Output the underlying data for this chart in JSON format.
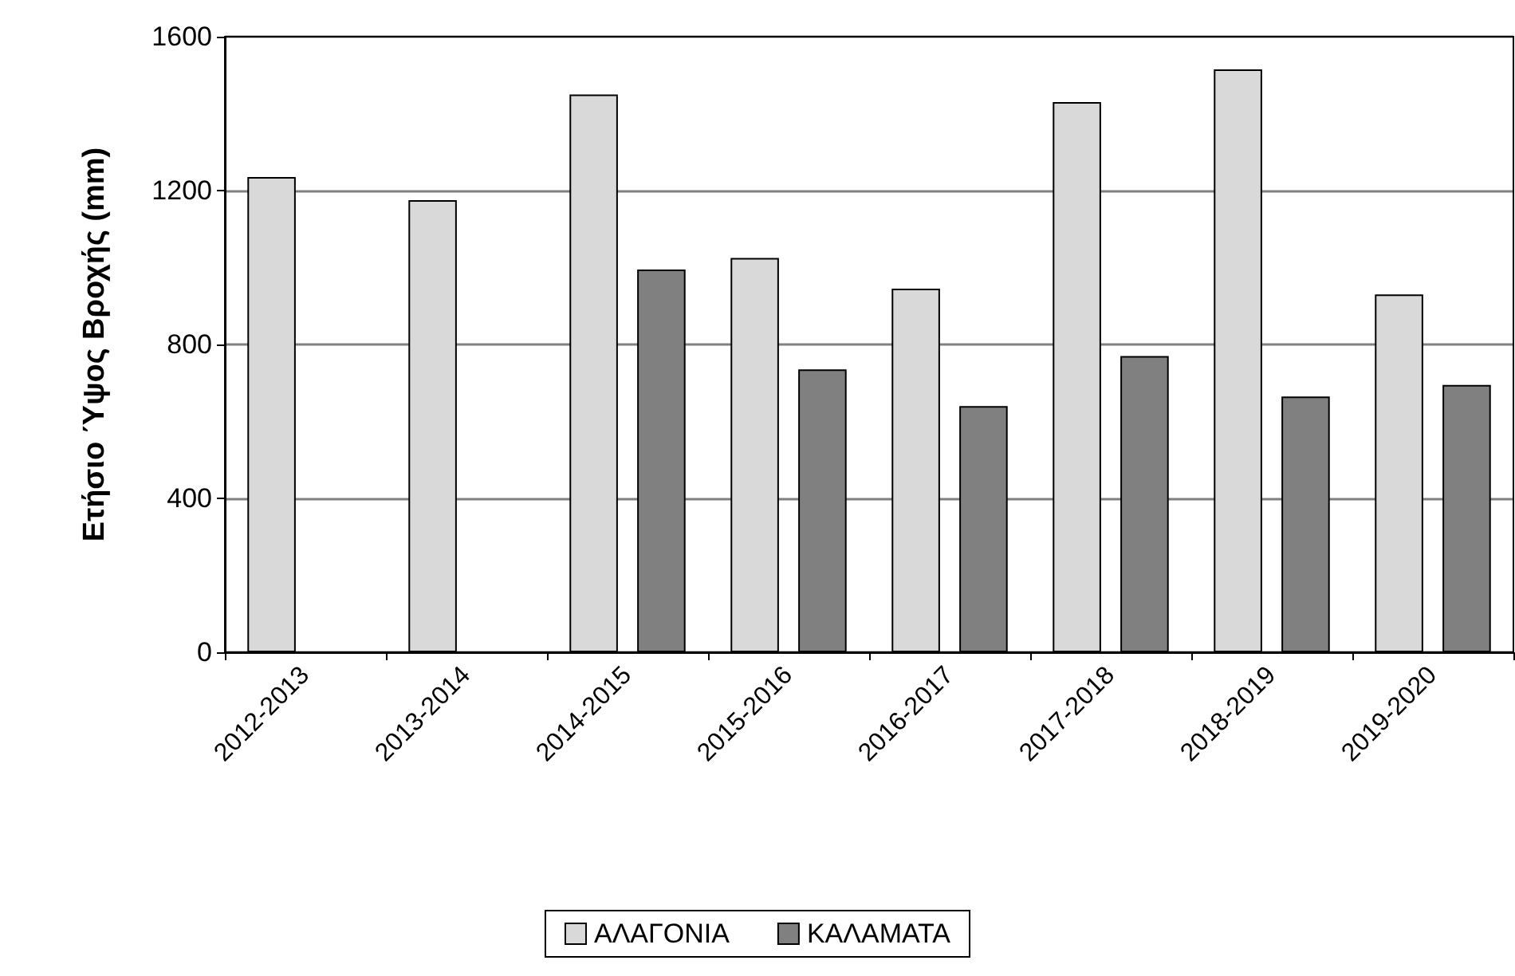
{
  "chart_data": {
    "type": "bar",
    "ylabel": "Ετήσιο Ύψος Βροχής (mm)",
    "categories": [
      "2012-2013",
      "2013-2014",
      "2014-2015",
      "2015-2016",
      "2016-2017",
      "2017-2018",
      "2018-2019",
      "2019-2020"
    ],
    "series": [
      {
        "name": "ΑΛΑΓΟΝΙΑ",
        "color": "#d9d9d9",
        "values": [
          1235,
          1175,
          1450,
          1025,
          945,
          1430,
          1515,
          930
        ]
      },
      {
        "name": "ΚΑΛΑΜΑΤΑ",
        "color": "#808080",
        "values": [
          null,
          null,
          995,
          735,
          640,
          770,
          665,
          695
        ]
      }
    ],
    "ylim": [
      0,
      1600
    ],
    "yticks": [
      0,
      400,
      800,
      1200,
      1600
    ],
    "grid": "y",
    "legend": "bottom"
  }
}
